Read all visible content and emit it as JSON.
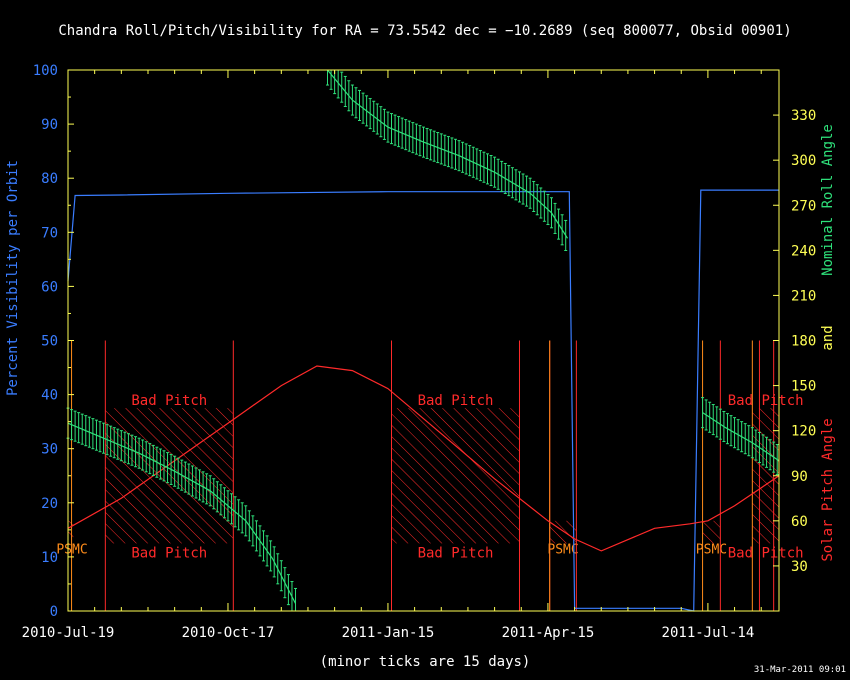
{
  "chart_data": {
    "type": "line",
    "title": "Chandra Roll/Pitch/Visibility for RA = 73.5542 dec = −10.2689 (seq 800077, Obsid 00901)",
    "xlabel": "(minor ticks are 15 days)",
    "ylabel_left": "Percent Visibility per Orbit",
    "ylabel_right_top": "Nominal Roll Angle",
    "ylabel_right_and": "and",
    "ylabel_right_bottom": "Solar Pitch Angle",
    "timestamp": "31-Mar-2011 09:01",
    "x_tick_labels": [
      "2010-Jul-19",
      "2010-Oct-17",
      "2011-Jan-15",
      "2011-Apr-15",
      "2011-Jul-14"
    ],
    "x_tick_days": [
      0,
      90,
      180,
      270,
      360
    ],
    "xlim_days": [
      0,
      400
    ],
    "ylim_left": [
      0,
      100
    ],
    "y_left_ticks": [
      0,
      10,
      20,
      30,
      40,
      50,
      60,
      70,
      80,
      90,
      100
    ],
    "ylim_right": [
      0,
      360
    ],
    "y_right_ticks": [
      30,
      60,
      90,
      120,
      150,
      180,
      210,
      240,
      270,
      300,
      330
    ],
    "band_labels": {
      "bad_pitch": "Bad Pitch",
      "psmc": "PSMC"
    },
    "colors": {
      "visibility": "#3a7dff",
      "roll": "#2ee07a",
      "pitch": "#ff2a2a",
      "psmc": "#ff8c1a",
      "axis": "#ffff55",
      "title": "#ffffff",
      "left_axis_text": "#3a7dff"
    },
    "series": [
      {
        "name": "Percent Visibility per Orbit",
        "axis": "left",
        "x": [
          0,
          4,
          30,
          90,
          180,
          270,
          282,
          285,
          345,
          352,
          356,
          400
        ],
        "y": [
          61,
          76.8,
          76.9,
          77.2,
          77.5,
          77.5,
          77.5,
          0.5,
          0.5,
          0,
          77.8,
          77.8
        ]
      },
      {
        "name": "Nominal Roll Angle",
        "axis": "right",
        "segments": [
          {
            "x": [
              0,
              20,
              40,
              60,
              80,
              100,
              115,
              128
            ],
            "y": [
              125,
              115,
              105,
              93,
              80,
              60,
              35,
              5
            ],
            "error": 20
          },
          {
            "x": [
              146,
              160,
              180,
              200,
              220,
              240,
              260,
              272,
              281
            ],
            "y": [
              360,
              340,
              322,
              312,
              303,
              292,
              278,
              265,
              248
            ],
            "error": 20
          },
          {
            "x": [
              357,
              370,
              385,
              400
            ],
            "y": [
              132,
              122,
              112,
              100
            ],
            "error": 20
          }
        ]
      },
      {
        "name": "Solar Pitch Angle",
        "axis": "right",
        "x": [
          0,
          30,
          60,
          90,
          120,
          140,
          160,
          180,
          210,
          240,
          270,
          285,
          300,
          330,
          350,
          360,
          375,
          400
        ],
        "y": [
          55,
          75,
          100,
          125,
          150,
          163,
          160,
          148,
          118,
          88,
          60,
          48,
          40,
          55,
          58,
          60,
          70,
          90
        ]
      }
    ],
    "bad_pitch_zones": [
      {
        "x": [
          21,
          93
        ],
        "y": [
          45,
          135
        ]
      },
      {
        "x": [
          182,
          254
        ],
        "y": [
          45,
          135
        ]
      },
      {
        "x": [
          385,
          400
        ],
        "y": [
          45,
          135
        ]
      }
    ],
    "psmc_zones": [
      {
        "x": [
          0,
          3
        ],
        "y": [
          45,
          60
        ]
      },
      {
        "x": [
          271,
          286
        ],
        "y": [
          45,
          60
        ]
      },
      {
        "x": [
          357,
          367
        ],
        "y": [
          45,
          60
        ]
      }
    ],
    "red_vertical_lines_days": [
      21,
      93,
      182,
      254,
      271,
      286,
      367,
      389,
      397
    ],
    "orange_vertical_lines_days": [
      2,
      271,
      357,
      385
    ]
  }
}
